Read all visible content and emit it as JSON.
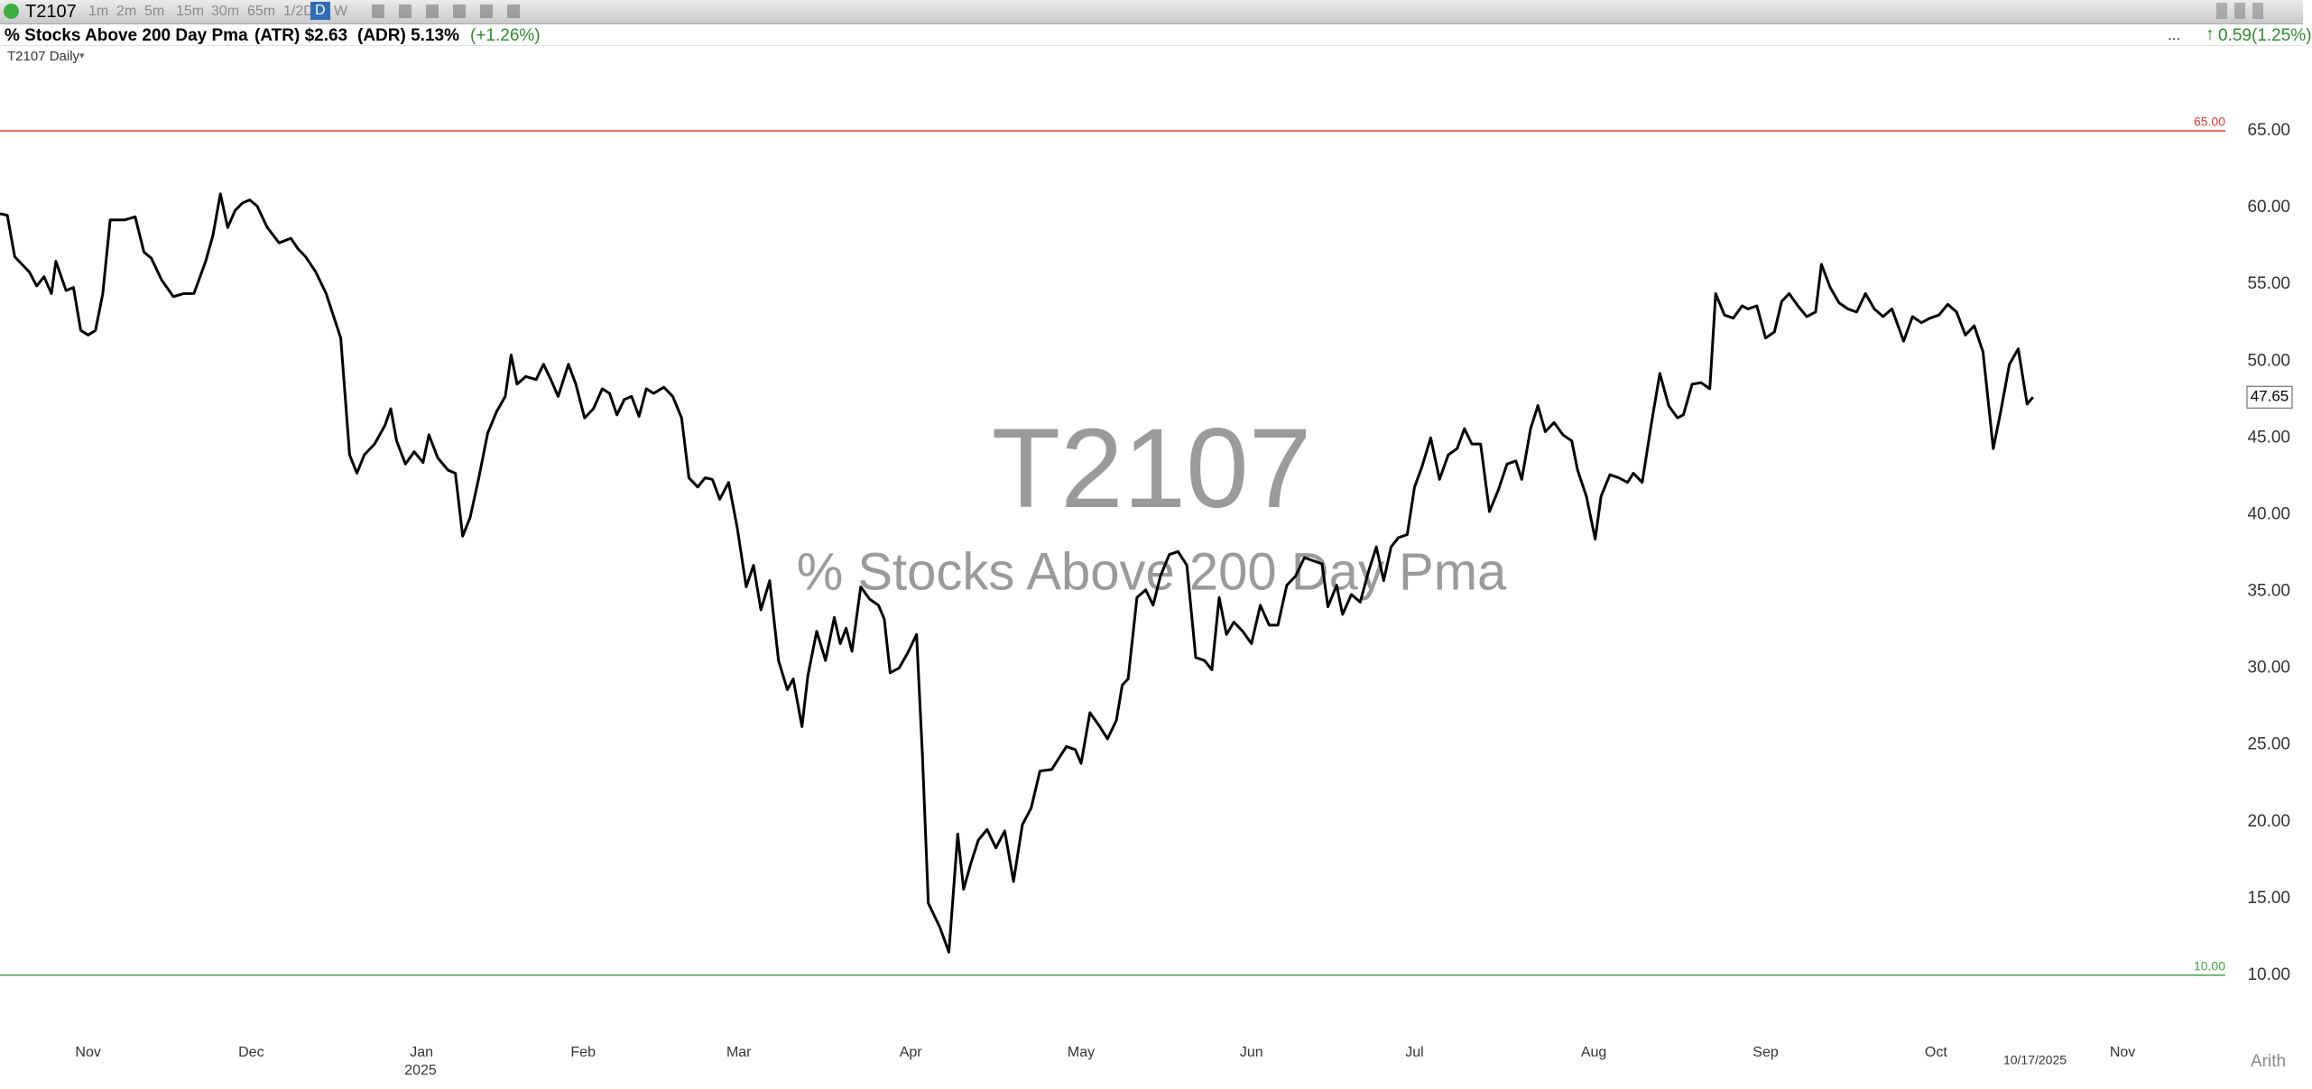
{
  "toolbar": {
    "symbol": "T2107",
    "timeframes": [
      "1m",
      "2m",
      "5m",
      "15m",
      "30m",
      "65m",
      "1/2D",
      "D",
      "W"
    ]
  },
  "header": {
    "title": "% Stocks Above 200 Day Pma",
    "atr": "(ATR) $2.63",
    "adr": "(ADR) 5.13%",
    "change": "(+1.26%)",
    "right_more": "...",
    "right_change": "0.59",
    "right_pct": "(1.25%)"
  },
  "pane_label": "T2107 Daily",
  "scale_mode": "Arith",
  "chart_data": {
    "type": "line",
    "watermark_title": "T2107",
    "watermark_subtitle": "% Stocks Above 200 Day Pma",
    "year_label": "2025",
    "date_label": "10/17/2025",
    "x": [
      0,
      5,
      10,
      20,
      25,
      30,
      35,
      38,
      45,
      50,
      55,
      60,
      65,
      70,
      75,
      85,
      92,
      98,
      103,
      110,
      118,
      125,
      132,
      140,
      145,
      150,
      155,
      160,
      165,
      170,
      175,
      182,
      190,
      198,
      203,
      208,
      215,
      222,
      232,
      238,
      243,
      248,
      255,
      262,
      266,
      270,
      276,
      282,
      288,
      292,
      298,
      305,
      310,
      315,
      320,
      326,
      332,
      338,
      344,
      348,
      352,
      358,
      365,
      370,
      375,
      380,
      387,
      392,
      398,
      404,
      410,
      415,
      420,
      425,
      430,
      435,
      440,
      445,
      452,
      458,
      464,
      469,
      475,
      480,
      485,
      490,
      496,
      502,
      508,
      513,
      518,
      524,
      530,
      536,
      540,
      546,
      550,
      556,
      562,
      568,
      572,
      576,
      580,
      586,
      592,
      598,
      602,
      606,
      612,
      618,
      624,
      628,
      632,
      640,
      646,
      652,
      656,
      661,
      666,
      672,
      678,
      684,
      690,
      696,
      702,
      708,
      716,
      722,
      726,
      732,
      736,
      742,
      748,
      754,
      760,
      764,
      768,
      774,
      780,
      785,
      790,
      796,
      802,
      808,
      814,
      820,
      825,
      830,
      835,
      840,
      846,
      852,
      858,
      864,
      870,
      876,
      882,
      888,
      894,
      900,
      904,
      910,
      914,
      920,
      926,
      932,
      937,
      942,
      947,
      952,
      958,
      963,
      968,
      974,
      980,
      986,
      992,
      997,
      1002,
      1008,
      1014,
      1020,
      1026,
      1032,
      1036,
      1042,
      1047,
      1052,
      1058,
      1064,
      1070,
      1074,
      1080,
      1086,
      1090,
      1096,
      1102,
      1108,
      1112,
      1118,
      1124,
      1130,
      1136,
      1142,
      1146,
      1152,
      1158,
      1164,
      1168,
      1174,
      1180,
      1186,
      1190,
      1196,
      1202,
      1208,
      1213,
      1218,
      1224,
      1230,
      1236,
      1240,
      1246,
      1252,
      1258,
      1264,
      1270,
      1276,
      1282,
      1288,
      1296,
      1302,
      1308,
      1314,
      1320,
      1326,
      1332,
      1338,
      1344,
      1350,
      1357,
      1362,
      1368,
      1374,
      1380,
      1384
    ],
    "series": [
      {
        "name": "T2107",
        "color": "#000000",
        "values": [
          59.6,
          59.5,
          56.8,
          55.8,
          54.9,
          55.5,
          54.4,
          56.5,
          54.6,
          54.8,
          52.0,
          51.7,
          52.0,
          54.4,
          59.2,
          59.2,
          59.4,
          57.1,
          56.7,
          55.3,
          54.2,
          54.4,
          54.4,
          56.5,
          58.2,
          60.9,
          58.7,
          59.8,
          60.3,
          60.5,
          60.1,
          58.7,
          57.7,
          58.0,
          57.3,
          56.8,
          55.8,
          54.4,
          51.5,
          43.9,
          42.7,
          43.9,
          44.6,
          45.8,
          46.9,
          44.8,
          43.3,
          44.1,
          43.4,
          45.2,
          43.7,
          42.9,
          42.7,
          38.6,
          39.8,
          42.4,
          45.3,
          46.7,
          47.7,
          50.4,
          48.5,
          49.0,
          48.8,
          49.8,
          48.8,
          47.7,
          49.8,
          48.5,
          46.3,
          46.9,
          48.2,
          47.9,
          46.5,
          47.5,
          47.7,
          46.4,
          48.2,
          47.9,
          48.3,
          47.7,
          46.3,
          42.4,
          41.8,
          42.4,
          42.3,
          41.0,
          42.1,
          39.1,
          35.3,
          36.7,
          33.8,
          35.7,
          30.5,
          28.6,
          29.3,
          26.2,
          29.5,
          32.4,
          30.5,
          33.3,
          31.6,
          32.6,
          31.1,
          35.3,
          34.5,
          34.1,
          33.2,
          29.7,
          30.0,
          31.0,
          32.2,
          24.3,
          14.7,
          13.1,
          11.5,
          19.2,
          15.6,
          17.3,
          18.8,
          19.5,
          18.3,
          19.4,
          16.1,
          19.8,
          20.9,
          23.3,
          23.4,
          24.3,
          24.9,
          24.7,
          23.8,
          27.1,
          26.3,
          25.4,
          26.6,
          28.9,
          29.3,
          34.6,
          35.1,
          34.1,
          36.0,
          37.4,
          37.6,
          36.7,
          30.7,
          30.5,
          29.9,
          34.6,
          32.2,
          33.0,
          32.4,
          31.6,
          34.1,
          32.8,
          32.8,
          35.4,
          36.0,
          37.2,
          37.0,
          36.8,
          34.0,
          35.4,
          33.5,
          34.8,
          34.3,
          36.4,
          37.9,
          35.7,
          37.9,
          38.5,
          38.7,
          41.8,
          43.1,
          45.0,
          42.3,
          43.9,
          44.3,
          45.6,
          44.6,
          44.6,
          40.2,
          41.6,
          43.3,
          43.5,
          42.3,
          45.6,
          47.1,
          45.4,
          46.0,
          45.2,
          44.8,
          42.9,
          41.2,
          38.4,
          41.2,
          42.6,
          42.4,
          42.1,
          42.7,
          42.1,
          45.8,
          49.2,
          47.1,
          46.3,
          46.5,
          48.5,
          48.6,
          48.2,
          54.4,
          53.0,
          52.8,
          53.6,
          53.4,
          53.6,
          51.5,
          51.9,
          53.9,
          54.4,
          53.6,
          52.9,
          53.2,
          56.3,
          54.8,
          53.8,
          53.4,
          53.2,
          54.4,
          53.4,
          52.9,
          53.4,
          51.3,
          52.9,
          52.5,
          52.8,
          53.0,
          53.7,
          53.2,
          51.7,
          52.3,
          50.6,
          44.3,
          46.7,
          49.8,
          50.8,
          47.2,
          47.65
        ]
      }
    ],
    "price_marker": {
      "value": 47.65,
      "label": "47.65"
    },
    "hlines": [
      {
        "value": 65,
        "label": "65.00",
        "color": "#e53935"
      },
      {
        "value": 10,
        "label": "10.00",
        "color": "#43a047"
      }
    ],
    "xlim": [
      0,
      1515
    ],
    "xticks": [
      {
        "value": 60,
        "label": "Nov"
      },
      {
        "value": 171,
        "label": "Dec"
      },
      {
        "value": 287,
        "label": "Jan"
      },
      {
        "value": 397,
        "label": "Feb"
      },
      {
        "value": 503,
        "label": "Mar"
      },
      {
        "value": 620,
        "label": "Apr"
      },
      {
        "value": 736,
        "label": "May"
      },
      {
        "value": 852,
        "label": "Jun"
      },
      {
        "value": 963,
        "label": "Jul"
      },
      {
        "value": 1085,
        "label": "Aug"
      },
      {
        "value": 1202,
        "label": "Sep"
      },
      {
        "value": 1318,
        "label": "Oct"
      },
      {
        "value": 1445,
        "label": "Nov"
      }
    ],
    "ylim": [
      6,
      70.5
    ],
    "yticks": [
      {
        "value": 10,
        "label": "10.00"
      },
      {
        "value": 15,
        "label": "15.00"
      },
      {
        "value": 20,
        "label": "20.00"
      },
      {
        "value": 25,
        "label": "25.00"
      },
      {
        "value": 30,
        "label": "30.00"
      },
      {
        "value": 35,
        "label": "35.00"
      },
      {
        "value": 40,
        "label": "40.00"
      },
      {
        "value": 45,
        "label": "45.00"
      },
      {
        "value": 50,
        "label": "50.00"
      },
      {
        "value": 55,
        "label": "55.00"
      },
      {
        "value": 60,
        "label": "60.00"
      },
      {
        "value": 65,
        "label": "65.00"
      }
    ],
    "grid": false
  }
}
